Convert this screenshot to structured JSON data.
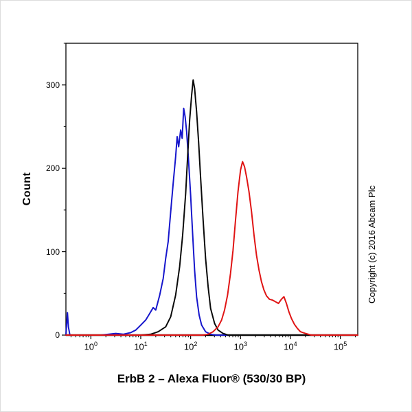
{
  "chart_data": {
    "type": "line",
    "title": "ErbB 2 – Alexa Fluor® (530/30 BP)",
    "xlabel": "",
    "ylabel": "Count",
    "copyright": "Copyright (c) 2016 Abcam Plc",
    "x_scale": "log10",
    "x_tick_exponents": [
      0,
      1,
      2,
      3,
      4,
      5
    ],
    "xlim_log10": [
      -0.5,
      5.35
    ],
    "y_ticks": [
      0,
      100,
      200,
      300
    ],
    "y_minor_step": 50,
    "ylim": [
      0,
      350
    ],
    "grid": false,
    "legend": "none",
    "series": [
      {
        "name": "blue-curve",
        "color": "#1616cc",
        "points": [
          [
            -0.5,
            0
          ],
          [
            -0.47,
            27
          ],
          [
            -0.45,
            10
          ],
          [
            -0.42,
            0
          ],
          [
            -0.2,
            0
          ],
          [
            0.2,
            0
          ],
          [
            0.5,
            2
          ],
          [
            0.65,
            1
          ],
          [
            0.8,
            3
          ],
          [
            0.9,
            6
          ],
          [
            1.0,
            12
          ],
          [
            1.1,
            18
          ],
          [
            1.18,
            26
          ],
          [
            1.25,
            33
          ],
          [
            1.3,
            30
          ],
          [
            1.38,
            48
          ],
          [
            1.45,
            68
          ],
          [
            1.5,
            92
          ],
          [
            1.55,
            112
          ],
          [
            1.6,
            148
          ],
          [
            1.65,
            182
          ],
          [
            1.7,
            214
          ],
          [
            1.73,
            238
          ],
          [
            1.76,
            226
          ],
          [
            1.8,
            246
          ],
          [
            1.83,
            236
          ],
          [
            1.86,
            272
          ],
          [
            1.89,
            262
          ],
          [
            1.92,
            244
          ],
          [
            1.96,
            208
          ],
          [
            2.0,
            168
          ],
          [
            2.04,
            122
          ],
          [
            2.08,
            78
          ],
          [
            2.12,
            46
          ],
          [
            2.17,
            24
          ],
          [
            2.22,
            12
          ],
          [
            2.3,
            4
          ],
          [
            2.4,
            1
          ],
          [
            2.5,
            0
          ],
          [
            5.35,
            0
          ]
        ]
      },
      {
        "name": "black-curve",
        "color": "#0a0a0a",
        "points": [
          [
            -0.5,
            0
          ],
          [
            1.0,
            0
          ],
          [
            1.2,
            1
          ],
          [
            1.35,
            4
          ],
          [
            1.5,
            10
          ],
          [
            1.6,
            22
          ],
          [
            1.7,
            48
          ],
          [
            1.78,
            82
          ],
          [
            1.84,
            120
          ],
          [
            1.9,
            170
          ],
          [
            1.94,
            215
          ],
          [
            1.98,
            258
          ],
          [
            2.02,
            288
          ],
          [
            2.05,
            306
          ],
          [
            2.08,
            296
          ],
          [
            2.12,
            268
          ],
          [
            2.16,
            232
          ],
          [
            2.2,
            188
          ],
          [
            2.25,
            138
          ],
          [
            2.3,
            92
          ],
          [
            2.35,
            58
          ],
          [
            2.4,
            32
          ],
          [
            2.48,
            14
          ],
          [
            2.55,
            6
          ],
          [
            2.65,
            2
          ],
          [
            2.75,
            0
          ],
          [
            5.35,
            0
          ]
        ]
      },
      {
        "name": "red-curve",
        "color": "#e01414",
        "points": [
          [
            -0.5,
            0
          ],
          [
            2.25,
            0
          ],
          [
            2.35,
            1
          ],
          [
            2.45,
            4
          ],
          [
            2.55,
            10
          ],
          [
            2.62,
            18
          ],
          [
            2.68,
            30
          ],
          [
            2.74,
            48
          ],
          [
            2.8,
            74
          ],
          [
            2.85,
            102
          ],
          [
            2.9,
            138
          ],
          [
            2.95,
            172
          ],
          [
            3.0,
            198
          ],
          [
            3.04,
            208
          ],
          [
            3.08,
            202
          ],
          [
            3.12,
            190
          ],
          [
            3.17,
            172
          ],
          [
            3.22,
            148
          ],
          [
            3.27,
            120
          ],
          [
            3.32,
            96
          ],
          [
            3.37,
            78
          ],
          [
            3.42,
            64
          ],
          [
            3.47,
            54
          ],
          [
            3.52,
            47
          ],
          [
            3.58,
            43
          ],
          [
            3.64,
            42
          ],
          [
            3.7,
            40
          ],
          [
            3.76,
            38
          ],
          [
            3.82,
            43
          ],
          [
            3.87,
            46
          ],
          [
            3.92,
            38
          ],
          [
            3.97,
            28
          ],
          [
            4.02,
            20
          ],
          [
            4.08,
            13
          ],
          [
            4.14,
            8
          ],
          [
            4.2,
            4
          ],
          [
            4.3,
            2
          ],
          [
            4.42,
            0
          ],
          [
            5.35,
            0
          ]
        ]
      }
    ]
  }
}
